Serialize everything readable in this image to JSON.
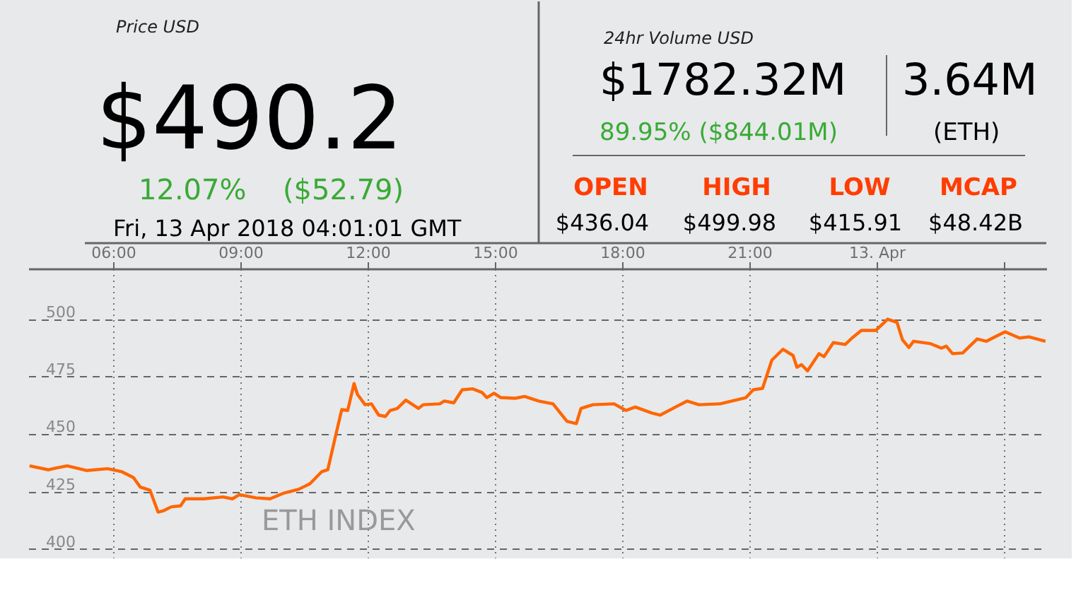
{
  "chart_data": [
    {
      "type": "other",
      "annotations": [
        "Price USD",
        "$490.2",
        "12.07%",
        "($52.79)",
        "Fri, 13 Apr 2018 04:01:01 GMT",
        "24hr Volume USD",
        "$1782.32M",
        "89.95% ($844.01M)",
        "3.64M",
        "(ETH)",
        "OPEN",
        "HIGH",
        "LOW",
        "MCAP",
        "$436.04",
        "$499.98",
        "$415.91",
        "$48.42B"
      ]
    },
    {
      "type": "line",
      "annotations": [
        "ETH INDEX"
      ],
      "x": [
        4.03,
        4.48,
        4.64,
        4.92,
        5.37,
        5.87,
        6.2,
        6.48,
        6.64,
        6.87,
        7.06,
        7.2,
        7.37,
        7.59,
        7.7,
        8.14,
        8.59,
        8.81,
        8.98,
        9.37,
        9.7,
        10.03,
        10.37,
        10.64,
        10.92,
        11.06,
        11.26,
        11.39,
        11.53,
        11.68,
        11.76,
        11.94,
        12.09,
        12.26,
        12.42,
        12.53,
        12.7,
        12.9,
        13.2,
        13.31,
        13.7,
        13.81,
        14.03,
        14.23,
        14.48,
        14.7,
        14.81,
        14.98,
        15.14,
        15.48,
        15.7,
        16.03,
        16.37,
        16.7,
        16.92,
        17.03,
        17.31,
        17.81,
        18.09,
        18.31,
        18.7,
        18.9,
        19.26,
        19.53,
        19.81,
        20.31,
        20.92,
        21.09,
        21.31,
        21.53,
        21.79,
        22.03,
        22.12,
        22.23,
        22.37,
        22.64,
        22.76,
        22.98,
        23.26,
        23.42,
        23.64,
        23.98,
        24.26,
        24.48,
        24.61,
        24.76,
        24.87,
        25.26,
        25.53,
        25.64,
        25.79,
        26.03,
        26.37,
        26.59,
        26.81,
        27.03,
        27.37,
        27.59,
        27.98
      ],
      "series": [
        {
          "color": "#ff6600",
          "values": [
            436.2,
            434.5,
            435.2,
            436.2,
            434.2,
            435,
            433.7,
            431.1,
            427,
            425.6,
            416.1,
            416.8,
            418.4,
            418.8,
            421.9,
            421.9,
            422.7,
            421.9,
            423.7,
            422.3,
            421.9,
            424.4,
            426,
            428.4,
            433.7,
            434.5,
            450.5,
            460.7,
            460.3,
            472,
            467.3,
            462.8,
            463.2,
            458.3,
            457.7,
            460.3,
            461.2,
            464.8,
            461.2,
            462.8,
            463.2,
            464.4,
            463.6,
            469.3,
            469.7,
            468.1,
            465.9,
            467.8,
            465.9,
            465.6,
            466.4,
            464.4,
            463.2,
            455.6,
            454.6,
            461.2,
            462.8,
            463.2,
            460.3,
            461.8,
            459.2,
            458.3,
            461.8,
            464.4,
            462.8,
            463.2,
            465.9,
            469.3,
            469.9,
            482.2,
            486.9,
            484.2,
            479.1,
            480.2,
            477.5,
            485,
            483.7,
            489.8,
            489,
            491.8,
            495.1,
            495.1,
            500,
            498.6,
            491,
            487.7,
            490.4,
            489.4,
            487.4,
            488.3,
            485,
            485.3,
            491.4,
            490.4,
            492.5,
            494.5,
            491.8,
            492.3,
            490.4
          ]
        }
      ],
      "xlim": [
        4,
        28
      ],
      "xticks": [
        {
          "value": 6,
          "label": "06:00"
        },
        {
          "value": 9,
          "label": "09:00"
        },
        {
          "value": 12,
          "label": "12:00"
        },
        {
          "value": 15,
          "label": "15:00"
        },
        {
          "value": 18,
          "label": "18:00"
        },
        {
          "value": 21,
          "label": "21:00"
        },
        {
          "value": 24,
          "label": "13. Apr"
        },
        {
          "value": 27,
          "label": null
        }
      ],
      "ylim": [
        396,
        522
      ],
      "yticks": [
        400,
        425,
        450,
        475,
        500
      ],
      "grid": true,
      "legend": false,
      "marker": "none",
      "line_style": "solid"
    }
  ]
}
